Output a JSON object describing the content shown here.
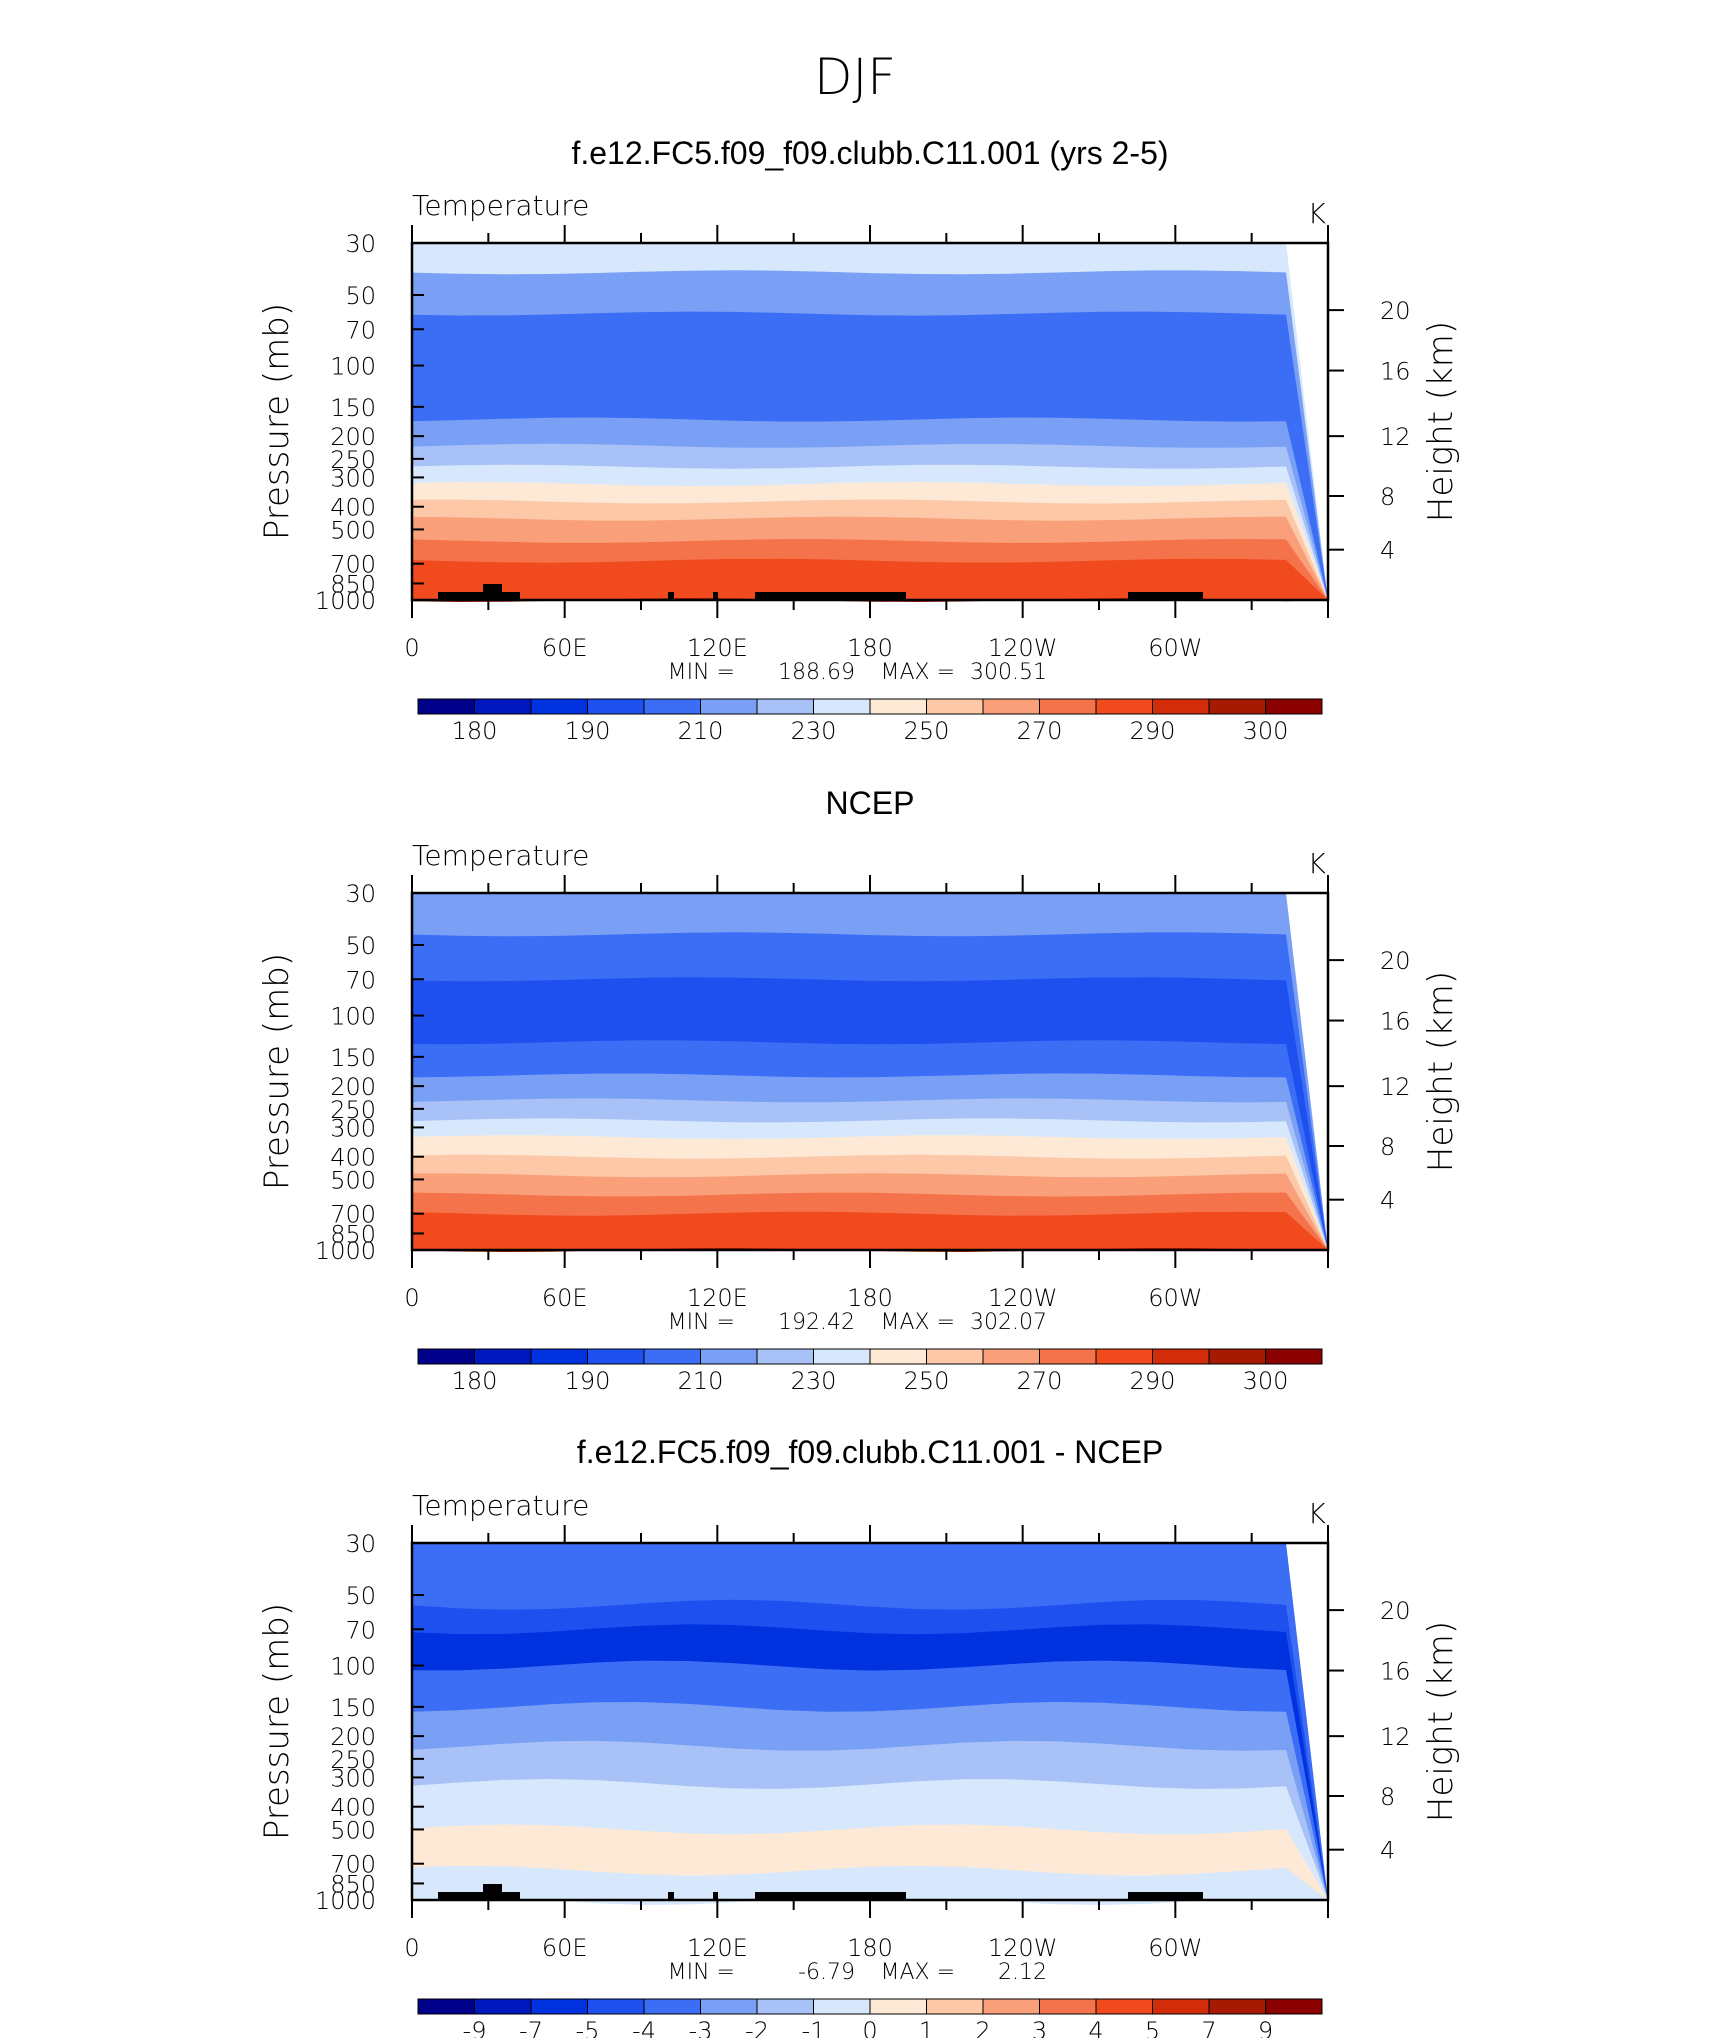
{
  "figure": {
    "title": "DJF"
  },
  "chart_data": [
    {
      "type": "contour",
      "title": "f.e12.FC5.f09_f09.clubb.C11.001 (yrs 2-5)",
      "variable": "Temperature",
      "units": "K",
      "xlabel": "",
      "ylabel": "Pressure (mb)",
      "y2label": "Height (km)",
      "x_ticks": [
        "0",
        "60E",
        "120E",
        "180",
        "120W",
        "60W"
      ],
      "y_ticks": [
        "30",
        "50",
        "70",
        "100",
        "150",
        "200",
        "250",
        "300",
        "400",
        "500",
        "700",
        "850",
        "1000"
      ],
      "y2_ticks": [
        "20",
        "16",
        "12",
        "8",
        "4"
      ],
      "ylim": [
        30,
        1000
      ],
      "min_label": "MIN =",
      "min_value": "188.69",
      "max_label": "MAX =",
      "max_value": "300.51",
      "levels_by_pressure": [
        {
          "p": 30,
          "value": 230
        },
        {
          "p": 40,
          "value": 215
        },
        {
          "p": 60,
          "value": 205
        },
        {
          "p": 100,
          "value": 200
        },
        {
          "p": 130,
          "value": 205
        },
        {
          "p": 170,
          "value": 212
        },
        {
          "p": 220,
          "value": 222
        },
        {
          "p": 270,
          "value": 232
        },
        {
          "p": 320,
          "value": 242
        },
        {
          "p": 380,
          "value": 252
        },
        {
          "p": 450,
          "value": 262
        },
        {
          "p": 560,
          "value": 270
        },
        {
          "p": 680,
          "value": 280
        },
        {
          "p": 850,
          "value": 288
        },
        {
          "p": 1000,
          "value": 298
        }
      ],
      "colorbar": {
        "colors": [
          "#00008b",
          "#0019bf",
          "#0032e0",
          "#1e50f0",
          "#3c6ef5",
          "#7aa0f5",
          "#a8c2f8",
          "#d7e8fc",
          "#fde9d5",
          "#fcc8a8",
          "#f9a07a",
          "#f5734a",
          "#f04a1e",
          "#d22c0a",
          "#a51a00",
          "#8b0000"
        ],
        "labels": [
          "180",
          "190",
          "210",
          "230",
          "250",
          "270",
          "290",
          "300"
        ]
      }
    },
    {
      "type": "contour",
      "title": "NCEP",
      "variable": "Temperature",
      "units": "K",
      "xlabel": "",
      "ylabel": "Pressure (mb)",
      "y2label": "Height (km)",
      "x_ticks": [
        "0",
        "60E",
        "120E",
        "180",
        "120W",
        "60W"
      ],
      "y_ticks": [
        "30",
        "50",
        "70",
        "100",
        "150",
        "200",
        "250",
        "300",
        "400",
        "500",
        "700",
        "850",
        "1000"
      ],
      "y2_ticks": [
        "20",
        "16",
        "12",
        "8",
        "4"
      ],
      "ylim": [
        30,
        1000
      ],
      "min_label": "MIN =",
      "min_value": "192.42",
      "max_label": "MAX =",
      "max_value": "302.07",
      "levels_by_pressure": [
        {
          "p": 30,
          "value": 210
        },
        {
          "p": 45,
          "value": 205
        },
        {
          "p": 70,
          "value": 198
        },
        {
          "p": 130,
          "value": 205
        },
        {
          "p": 180,
          "value": 212
        },
        {
          "p": 230,
          "value": 222
        },
        {
          "p": 280,
          "value": 232
        },
        {
          "p": 330,
          "value": 242
        },
        {
          "p": 400,
          "value": 252
        },
        {
          "p": 480,
          "value": 262
        },
        {
          "p": 580,
          "value": 270
        },
        {
          "p": 700,
          "value": 280
        },
        {
          "p": 850,
          "value": 288
        },
        {
          "p": 1000,
          "value": 298
        }
      ],
      "colorbar": {
        "colors": [
          "#00008b",
          "#0019bf",
          "#0032e0",
          "#1e50f0",
          "#3c6ef5",
          "#7aa0f5",
          "#a8c2f8",
          "#d7e8fc",
          "#fde9d5",
          "#fcc8a8",
          "#f9a07a",
          "#f5734a",
          "#f04a1e",
          "#d22c0a",
          "#a51a00",
          "#8b0000"
        ],
        "labels": [
          "180",
          "190",
          "210",
          "230",
          "250",
          "270",
          "290",
          "300"
        ]
      }
    },
    {
      "type": "contour",
      "title": "f.e12.FC5.f09_f09.clubb.C11.001 - NCEP",
      "variable": "Temperature",
      "units": "K",
      "xlabel": "",
      "ylabel": "Pressure (mb)",
      "y2label": "Height (km)",
      "x_ticks": [
        "0",
        "60E",
        "120E",
        "180",
        "120W",
        "60W"
      ],
      "y_ticks": [
        "30",
        "50",
        "70",
        "100",
        "150",
        "200",
        "250",
        "300",
        "400",
        "500",
        "700",
        "850",
        "1000"
      ],
      "y2_ticks": [
        "20",
        "16",
        "12",
        "8",
        "4"
      ],
      "ylim": [
        30,
        1000
      ],
      "min_label": "MIN =",
      "min_value": "-6.79",
      "max_label": "MAX =",
      "max_value": "2.12",
      "levels_by_pressure": [
        {
          "p": 30,
          "value": -3.5
        },
        {
          "p": 55,
          "value": -4.2
        },
        {
          "p": 70,
          "value": -5.5
        },
        {
          "p": 100,
          "value": -3.5
        },
        {
          "p": 150,
          "value": -2.5
        },
        {
          "p": 220,
          "value": -1.5
        },
        {
          "p": 320,
          "value": -0.5
        },
        {
          "p": 500,
          "value": 0.5
        },
        {
          "p": 750,
          "value": -0.5
        },
        {
          "p": 1000,
          "value": -0.5
        }
      ],
      "colorbar": {
        "colors": [
          "#00008b",
          "#0019bf",
          "#0032e0",
          "#1e50f0",
          "#3c6ef5",
          "#7aa0f5",
          "#a8c2f8",
          "#d7e8fc",
          "#fde9d5",
          "#fcc8a8",
          "#f9a07a",
          "#f5734a",
          "#f04a1e",
          "#d22c0a",
          "#a51a00",
          "#8b0000"
        ],
        "labels": [
          "-9",
          "-7",
          "-5",
          "-4",
          "-3",
          "-2",
          "-1",
          "0",
          "1",
          "2",
          "3",
          "4",
          "5",
          "7",
          "9"
        ]
      }
    }
  ]
}
